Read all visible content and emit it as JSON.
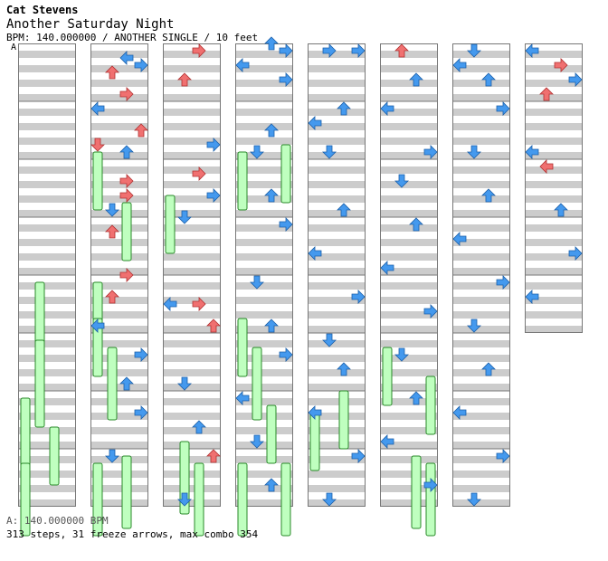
{
  "header": {
    "artist": "Cat Stevens",
    "title": "Another Saturday Night",
    "meta": "BPM: 140.000000 / ANOTHER SINGLE / 10 feet",
    "bpm_marker": "A"
  },
  "footer": {
    "bpm_line": "A: 140.000000 BPM",
    "stats": "313 steps, 31 freeze arrows, max combo 354"
  },
  "colors": {
    "red_arrow": "#f07070",
    "blue_arrow": "#4499ee",
    "freeze": "#bfffbf",
    "stripe": "#cccccc"
  },
  "chart_data": {
    "type": "dance-step-chart",
    "columns": 8,
    "measures_per_column": 8,
    "lanes": [
      "left",
      "down",
      "up",
      "right"
    ],
    "total_steps": 313,
    "freeze_arrows": 31,
    "max_combo": 354,
    "notes": [
      [],
      [
        [
          2,
          1.5,
          "L"
        ],
        [
          1,
          2.5,
          "U"
        ],
        [
          2,
          4,
          "R"
        ],
        [
          3,
          2,
          "R"
        ],
        [
          3,
          6.5,
          "U"
        ],
        [
          0,
          7.5,
          "D"
        ],
        [
          0,
          5,
          "L"
        ],
        [
          2,
          8,
          "U"
        ],
        [
          2,
          10,
          "R"
        ],
        [
          2,
          11,
          "R"
        ],
        [
          1,
          12,
          "D"
        ],
        [
          1,
          13.5,
          "U"
        ],
        [
          2,
          16.5,
          "R"
        ],
        [
          1,
          18,
          "U"
        ],
        [
          0,
          20,
          "L"
        ],
        [
          3,
          22,
          "R"
        ],
        [
          2,
          24,
          "U"
        ],
        [
          3,
          26,
          "R"
        ],
        [
          1,
          29,
          "D"
        ],
        [
          0,
          34,
          "L"
        ],
        [
          1,
          37,
          "L"
        ],
        [
          0,
          40,
          "U"
        ],
        [
          2,
          42.5,
          "R"
        ],
        [
          3,
          44,
          "U"
        ],
        [
          1,
          46,
          "D"
        ],
        [
          3,
          49,
          "R"
        ],
        [
          0,
          54,
          "L"
        ],
        [
          2,
          58,
          "R"
        ],
        [
          1,
          62,
          "D"
        ]
      ],
      [
        [
          2,
          1,
          "R"
        ],
        [
          1,
          3,
          "U"
        ],
        [
          3,
          7.5,
          "R"
        ],
        [
          2,
          9.5,
          "R"
        ],
        [
          3,
          11,
          "R"
        ],
        [
          1,
          12.5,
          "D"
        ],
        [
          0,
          18.5,
          "L"
        ],
        [
          2,
          18.5,
          "R"
        ],
        [
          3,
          20,
          "U"
        ],
        [
          1,
          24,
          "D"
        ],
        [
          2,
          27,
          "U"
        ],
        [
          3,
          29,
          "U"
        ],
        [
          1,
          32,
          "D"
        ],
        [
          0,
          34,
          "L"
        ],
        [
          2,
          36,
          "R"
        ],
        [
          3,
          38,
          "R"
        ],
        [
          0,
          41,
          "L"
        ],
        [
          2,
          44,
          "U"
        ],
        [
          3,
          46,
          "R"
        ],
        [
          1,
          49,
          "D"
        ],
        [
          2,
          52,
          "U"
        ],
        [
          0,
          55,
          "L"
        ],
        [
          3,
          58,
          "R"
        ],
        [
          1,
          62,
          "D"
        ]
      ],
      [
        [
          2,
          0.5,
          "U"
        ],
        [
          3,
          1,
          "R"
        ],
        [
          3,
          3,
          "R"
        ],
        [
          0,
          2,
          "L"
        ],
        [
          2,
          6.5,
          "U"
        ],
        [
          1,
          8,
          "D"
        ],
        [
          2,
          11,
          "U"
        ],
        [
          3,
          13,
          "R"
        ],
        [
          1,
          17,
          "D"
        ],
        [
          2,
          20,
          "U"
        ],
        [
          3,
          22,
          "R"
        ],
        [
          0,
          25,
          "L"
        ],
        [
          1,
          28,
          "D"
        ],
        [
          2,
          31,
          "U"
        ],
        [
          3,
          33,
          "R"
        ],
        [
          0,
          36,
          "L"
        ],
        [
          1,
          39,
          "D"
        ],
        [
          2,
          42,
          "U"
        ],
        [
          3,
          46,
          "R"
        ],
        [
          1,
          50,
          "D"
        ],
        [
          2,
          53,
          "U"
        ],
        [
          0,
          56,
          "L"
        ],
        [
          3,
          59,
          "R"
        ]
      ],
      [
        [
          1,
          1,
          "R"
        ],
        [
          3,
          1,
          "R"
        ],
        [
          0,
          6,
          "L"
        ],
        [
          2,
          5,
          "U"
        ],
        [
          1,
          8,
          "D"
        ],
        [
          2,
          12,
          "U"
        ],
        [
          0,
          15,
          "L"
        ],
        [
          3,
          18,
          "R"
        ],
        [
          1,
          21,
          "D"
        ],
        [
          2,
          23,
          "U"
        ],
        [
          0,
          26,
          "L"
        ],
        [
          3,
          29,
          "R"
        ],
        [
          1,
          32,
          "D"
        ],
        [
          2,
          35,
          "U"
        ],
        [
          0,
          38,
          "L"
        ],
        [
          3,
          41,
          "R"
        ],
        [
          1,
          44,
          "D"
        ],
        [
          2,
          47,
          "U"
        ],
        [
          0,
          50,
          "L"
        ],
        [
          3,
          53,
          "R"
        ],
        [
          1,
          56,
          "D"
        ],
        [
          2,
          59,
          "U"
        ]
      ],
      [
        [
          1,
          1,
          "U"
        ],
        [
          2,
          3,
          "U"
        ],
        [
          0,
          5,
          "L"
        ],
        [
          3,
          8,
          "R"
        ],
        [
          1,
          10,
          "D"
        ],
        [
          2,
          13,
          "U"
        ],
        [
          0,
          16,
          "L"
        ],
        [
          3,
          19,
          "R"
        ],
        [
          1,
          22,
          "D"
        ],
        [
          2,
          25,
          "U"
        ],
        [
          0,
          28,
          "L"
        ],
        [
          3,
          31,
          "R"
        ],
        [
          1,
          34,
          "D"
        ],
        [
          2,
          37,
          "U"
        ],
        [
          0,
          40,
          "L"
        ],
        [
          3,
          43,
          "R"
        ],
        [
          1,
          46,
          "D"
        ],
        [
          2,
          49,
          "U"
        ],
        [
          0,
          52,
          "L"
        ],
        [
          3,
          55,
          "R"
        ],
        [
          1,
          58,
          "D"
        ],
        [
          2,
          61,
          "U"
        ]
      ],
      [
        [
          0,
          2,
          "L"
        ],
        [
          1,
          1,
          "D"
        ],
        [
          2,
          3,
          "U"
        ],
        [
          3,
          5,
          "R"
        ],
        [
          1,
          8,
          "D"
        ],
        [
          2,
          11,
          "U"
        ],
        [
          0,
          14,
          "L"
        ],
        [
          3,
          17,
          "R"
        ],
        [
          1,
          20,
          "D"
        ],
        [
          2,
          23,
          "U"
        ],
        [
          0,
          26,
          "L"
        ],
        [
          3,
          29,
          "R"
        ],
        [
          1,
          32,
          "D"
        ],
        [
          2,
          35,
          "U"
        ],
        [
          0,
          38,
          "L"
        ],
        [
          3,
          41,
          "R"
        ],
        [
          1,
          44,
          "D"
        ],
        [
          2,
          47,
          "U"
        ],
        [
          0,
          50,
          "L"
        ],
        [
          3,
          53,
          "R"
        ],
        [
          1,
          56,
          "D"
        ],
        [
          2,
          59,
          "U"
        ]
      ],
      [
        [
          0,
          1,
          "L"
        ],
        [
          2,
          2,
          "R"
        ],
        [
          1,
          4,
          "U"
        ],
        [
          3,
          3,
          "R"
        ],
        [
          0,
          8,
          "L"
        ],
        [
          1,
          9,
          "L"
        ],
        [
          2,
          12,
          "U"
        ],
        [
          3,
          15,
          "R"
        ],
        [
          0,
          18,
          "L"
        ],
        [
          1,
          21,
          "D"
        ],
        [
          2,
          24,
          "U"
        ],
        [
          3,
          27,
          "R"
        ],
        [
          0,
          30,
          "L"
        ],
        [
          1,
          33,
          "D"
        ],
        [
          2,
          36,
          "U"
        ],
        [
          3,
          39,
          "R"
        ]
      ]
    ],
    "freezes": [
      [
        [
          1,
          33,
          5
        ],
        [
          1,
          41,
          6
        ],
        [
          0,
          49,
          5
        ],
        [
          2,
          53,
          4
        ],
        [
          0,
          58,
          5
        ]
      ],
      [
        [
          0,
          15,
          4
        ],
        [
          2,
          22,
          4
        ],
        [
          0,
          33,
          4
        ],
        [
          0,
          38,
          4
        ],
        [
          1,
          42,
          5
        ],
        [
          2,
          57,
          5
        ],
        [
          0,
          58,
          5
        ]
      ],
      [
        [
          0,
          21,
          4
        ],
        [
          1,
          55,
          5
        ],
        [
          2,
          58,
          5
        ]
      ],
      [
        [
          0,
          15,
          4
        ],
        [
          3,
          14,
          4
        ],
        [
          0,
          38,
          4
        ],
        [
          1,
          42,
          5
        ],
        [
          2,
          50,
          4
        ],
        [
          0,
          58,
          5
        ],
        [
          3,
          58,
          5
        ]
      ],
      [
        [
          0,
          51,
          4
        ],
        [
          2,
          48,
          4
        ]
      ],
      [
        [
          0,
          42,
          4
        ],
        [
          3,
          46,
          4
        ],
        [
          2,
          57,
          5
        ],
        [
          3,
          58,
          5
        ]
      ],
      [],
      []
    ]
  }
}
